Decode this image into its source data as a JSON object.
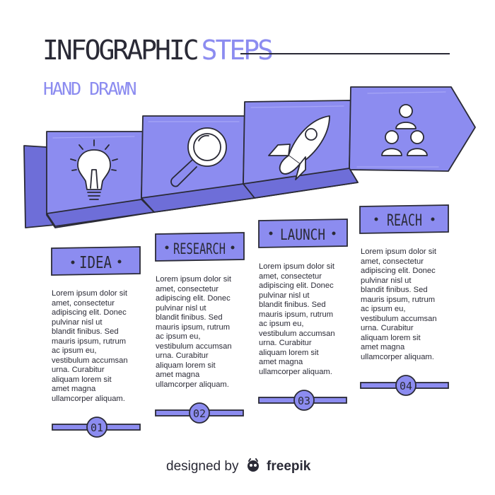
{
  "header": {
    "title_main": "INFOGRAPHIC",
    "title_accent": "STEPS",
    "subtitle": "HAND DRAWN"
  },
  "steps": [
    {
      "label": "IDEA",
      "number": "01",
      "icon": "lightbulb-icon",
      "text": "Lorem ipsum dolor sit\namet, consectetur\nadipiscing elit. Donec\npulvinar nisl ut\nblandit finibus. Sed\nmauris ipsum, rutrum\nac ipsum eu,\nvestibulum accumsan\nurna.  Curabitur\naliquam lorem sit\namet magna\nullamcorper aliquam."
    },
    {
      "label": "RESEARCH",
      "number": "02",
      "icon": "magnifier-icon",
      "text": "Lorem ipsum dolor sit\namet, consectetur\nadipiscing elit. Donec\npulvinar nisl ut\nblandit finibus. Sed\nmauris ipsum, rutrum\nac ipsum eu,\nvestibulum accumsan\nurna.  Curabitur\naliquam lorem sit\namet magna\nullamcorper aliquam."
    },
    {
      "label": "LAUNCH",
      "number": "03",
      "icon": "rocket-icon",
      "text": "Lorem ipsum dolor sit\namet, consectetur\nadipiscing elit. Donec\npulvinar nisl ut\nblandit finibus. Sed\nmauris ipsum, rutrum\nac ipsum eu,\nvestibulum accumsan\nurna. Curabitur\naliquam lorem sit\namet magna\nullamcorper aliquam."
    },
    {
      "label": "REACH",
      "number": "04",
      "icon": "team-icon",
      "text": "Lorem ipsum dolor sit\namet, consectetur\nadipiscing elit. Donec\npulvinar nisl ut\nblandit finibus. Sed\nmauris ipsum, rutrum\nac ipsum eu,\nvestibulum accumsan\nurna. Curabitur\naliquam lorem sit\namet magna\nullamcorper aliquam."
    }
  ],
  "credit": {
    "prefix": "designed by",
    "brand": "freepik",
    "icon": "freepik-logo-icon"
  },
  "colors": {
    "accent": "#8c8cf0",
    "accent_dark": "#6e6ed8",
    "accent_light": "#a6a6f6",
    "ink": "#2a2a36",
    "background": "#ffffff"
  }
}
